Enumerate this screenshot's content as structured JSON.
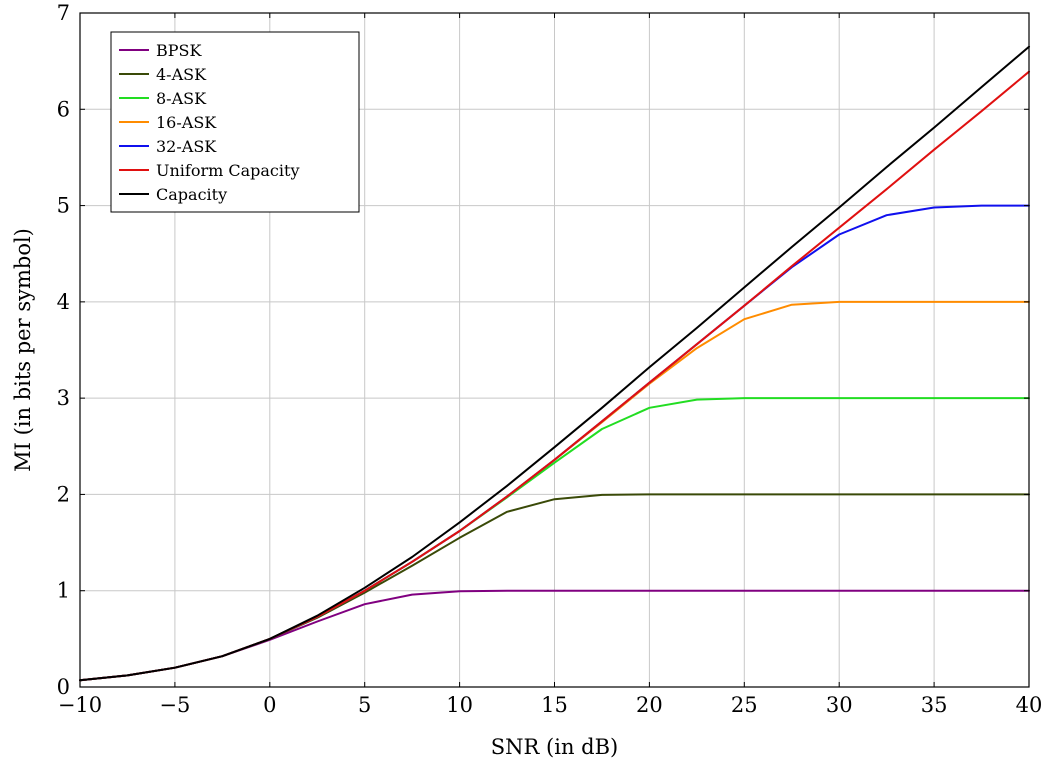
{
  "chart_data": {
    "type": "line",
    "xlabel": "SNR (in dB)",
    "ylabel": "MI (in bits per symbol)",
    "xlim": [
      -10,
      40
    ],
    "ylim": [
      0,
      7
    ],
    "xticks": [
      -10,
      -5,
      0,
      5,
      10,
      15,
      20,
      25,
      30,
      35,
      40
    ],
    "xtick_labels": [
      "−10",
      "−5",
      "0",
      "5",
      "10",
      "15",
      "20",
      "25",
      "30",
      "35",
      "40"
    ],
    "yticks": [
      0,
      1,
      2,
      3,
      4,
      5,
      6,
      7
    ],
    "ytick_labels": [
      "0",
      "1",
      "2",
      "3",
      "4",
      "5",
      "6",
      "7"
    ],
    "grid": true,
    "legend_position": "top-left",
    "x": [
      -10,
      -7.5,
      -5,
      -2.5,
      0,
      2.5,
      5,
      7.5,
      10,
      12.5,
      15,
      17.5,
      20,
      22.5,
      25,
      27.5,
      30,
      32.5,
      35,
      37.5,
      40
    ],
    "series": [
      {
        "name": "BPSK",
        "color": "#800080",
        "values": [
          0.07,
          0.12,
          0.2,
          0.32,
          0.49,
          0.68,
          0.86,
          0.96,
          0.995,
          1.0,
          1.0,
          1.0,
          1.0,
          1.0,
          1.0,
          1.0,
          1.0,
          1.0,
          1.0,
          1.0,
          1.0
        ]
      },
      {
        "name": "4-ASK",
        "color": "#3a4a08",
        "values": [
          0.07,
          0.12,
          0.2,
          0.32,
          0.5,
          0.72,
          0.98,
          1.26,
          1.55,
          1.82,
          1.95,
          1.995,
          2.0,
          2.0,
          2.0,
          2.0,
          2.0,
          2.0,
          2.0,
          2.0,
          2.0
        ]
      },
      {
        "name": "8-ASK",
        "color": "#22dd22",
        "values": [
          0.07,
          0.12,
          0.2,
          0.32,
          0.5,
          0.73,
          1.0,
          1.3,
          1.62,
          1.97,
          2.33,
          2.68,
          2.9,
          2.985,
          3.0,
          3.0,
          3.0,
          3.0,
          3.0,
          3.0,
          3.0
        ]
      },
      {
        "name": "16-ASK",
        "color": "#ff8c00",
        "values": [
          0.07,
          0.12,
          0.2,
          0.32,
          0.5,
          0.73,
          1.0,
          1.3,
          1.62,
          1.98,
          2.36,
          2.75,
          3.15,
          3.52,
          3.82,
          3.97,
          4.0,
          4.0,
          4.0,
          4.0,
          4.0
        ]
      },
      {
        "name": "32-ASK",
        "color": "#1010ee",
        "values": [
          0.07,
          0.12,
          0.2,
          0.32,
          0.5,
          0.73,
          1.0,
          1.3,
          1.62,
          1.98,
          2.36,
          2.76,
          3.16,
          3.56,
          3.96,
          4.36,
          4.7,
          4.9,
          4.98,
          5.0,
          5.0
        ]
      },
      {
        "name": "Uniform Capacity",
        "color": "#e01010",
        "values": [
          0.07,
          0.12,
          0.2,
          0.32,
          0.5,
          0.73,
          1.0,
          1.3,
          1.62,
          1.98,
          2.36,
          2.76,
          3.16,
          3.56,
          3.96,
          4.37,
          4.77,
          5.17,
          5.58,
          5.98,
          6.39
        ]
      },
      {
        "name": "Capacity",
        "color": "#000000",
        "values": [
          0.07,
          0.12,
          0.2,
          0.32,
          0.5,
          0.74,
          1.03,
          1.35,
          1.71,
          2.09,
          2.49,
          2.9,
          3.32,
          3.73,
          4.15,
          4.57,
          4.98,
          5.4,
          5.81,
          6.23,
          6.65
        ]
      }
    ]
  }
}
